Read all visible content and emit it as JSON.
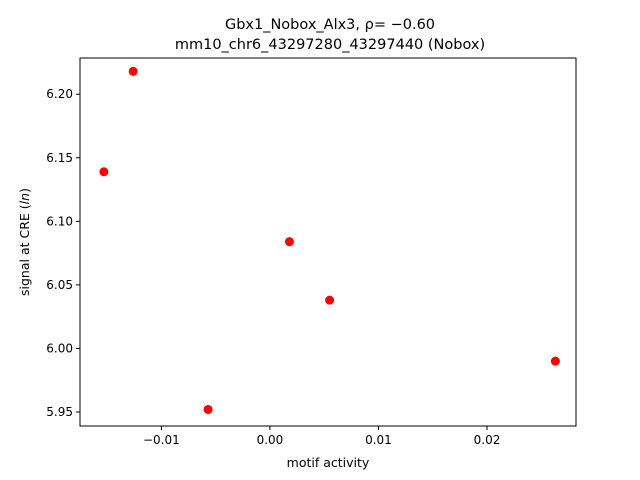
{
  "chart_data": {
    "type": "scatter",
    "title": "Gbx1_Nobox_Alx3, ρ= −0.60",
    "subtitle": "mm10_chr6_43297280_43297440 (Nobox)",
    "xlabel": "motif activity",
    "ylabel": "signal at CRE (ln)",
    "xlim": [
      -0.0175,
      0.0282
    ],
    "ylim": [
      5.939,
      6.2285
    ],
    "xticks": [
      -0.01,
      0.0,
      0.01,
      0.02
    ],
    "xtick_labels": [
      "−0.01",
      "0.00",
      "0.01",
      "0.02"
    ],
    "yticks": [
      5.95,
      6.0,
      6.05,
      6.1,
      6.15,
      6.2
    ],
    "ytick_labels": [
      "5.95",
      "6.00",
      "6.05",
      "6.10",
      "6.15",
      "6.20"
    ],
    "grid": false,
    "marker_color": "#ff0000",
    "points": [
      {
        "x": -0.0153,
        "y": 6.139
      },
      {
        "x": -0.0126,
        "y": 6.218
      },
      {
        "x": -0.0057,
        "y": 5.952
      },
      {
        "x": 0.0018,
        "y": 6.084
      },
      {
        "x": 0.0055,
        "y": 6.038
      },
      {
        "x": 0.0263,
        "y": 5.99
      }
    ]
  }
}
